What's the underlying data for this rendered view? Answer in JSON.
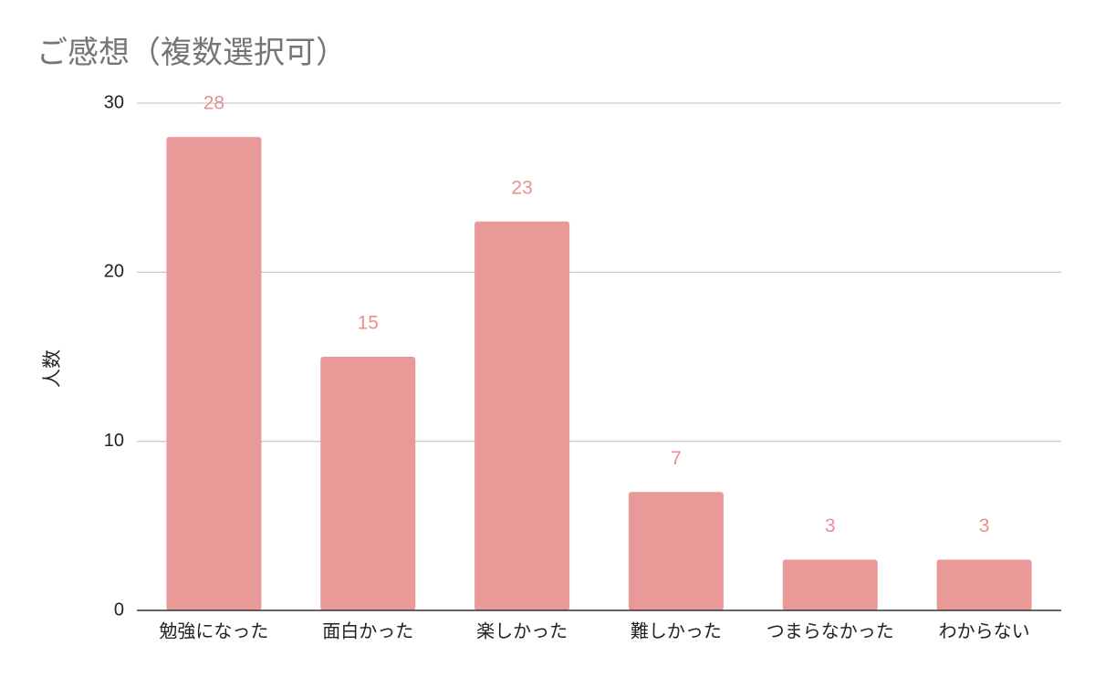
{
  "chart_data": {
    "type": "bar",
    "title": "ご感想（複数選択可）",
    "xlabel": "",
    "ylabel": "人数",
    "categories": [
      "勉強になった",
      "面白かった",
      "楽しかった",
      "難しかった",
      "つまらなかった",
      "わからない"
    ],
    "values": [
      28,
      15,
      23,
      7,
      3,
      3
    ],
    "ylim": [
      0,
      30
    ],
    "yticks": [
      0,
      10,
      20,
      30
    ],
    "grid": true,
    "legend": "none",
    "colors": {
      "bar": "#ea9999",
      "data_label": "#e69191",
      "grid": "#cccccc",
      "axis": "#333333"
    }
  }
}
